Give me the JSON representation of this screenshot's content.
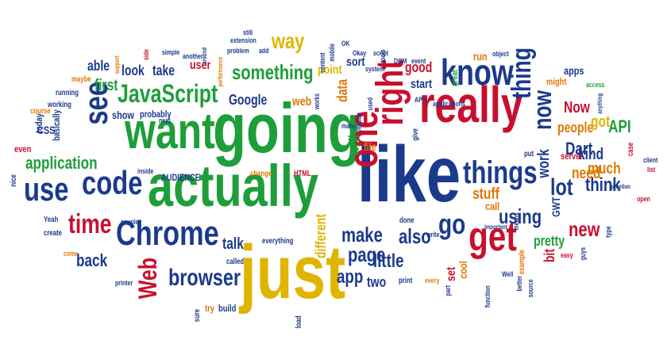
{
  "colors": {
    "red": "#c8102e",
    "green": "#1e9e3a",
    "blue": "#1b3a8c",
    "yellow": "#e0b400",
    "orange": "#e07800"
  },
  "words": [
    {
      "text": "like",
      "color": "blue",
      "weight": 10
    },
    {
      "text": "going",
      "color": "green",
      "weight": 10
    },
    {
      "text": "just",
      "color": "yellow",
      "weight": 9
    },
    {
      "text": "actually",
      "color": "green",
      "weight": 9
    },
    {
      "text": "want",
      "color": "green",
      "weight": 8
    },
    {
      "text": "really",
      "color": "red",
      "weight": 8
    },
    {
      "text": "one",
      "color": "red",
      "weight": 7
    },
    {
      "text": "right",
      "color": "red",
      "weight": 7
    },
    {
      "text": "know",
      "color": "blue",
      "weight": 7
    },
    {
      "text": "get",
      "color": "red",
      "weight": 7
    },
    {
      "text": "Chrome",
      "color": "blue",
      "weight": 6
    },
    {
      "text": "code",
      "color": "blue",
      "weight": 6
    },
    {
      "text": "things",
      "color": "blue",
      "weight": 6
    },
    {
      "text": "see",
      "color": "blue",
      "weight": 6
    },
    {
      "text": "use",
      "color": "blue",
      "weight": 6
    },
    {
      "text": "time",
      "color": "red",
      "weight": 6
    },
    {
      "text": "JavaScript",
      "color": "green",
      "weight": 5
    },
    {
      "text": "go",
      "color": "blue",
      "weight": 5
    },
    {
      "text": "thing",
      "color": "blue",
      "weight": 5
    },
    {
      "text": "now",
      "color": "blue",
      "weight": 5
    },
    {
      "text": "Web",
      "color": "red",
      "weight": 5
    },
    {
      "text": "browser",
      "color": "blue",
      "weight": 5
    },
    {
      "text": "lot",
      "color": "blue",
      "weight": 5
    },
    {
      "text": "way",
      "color": "yellow",
      "weight": 4
    },
    {
      "text": "something",
      "color": "green",
      "weight": 4
    },
    {
      "text": "make",
      "color": "blue",
      "weight": 4
    },
    {
      "text": "also",
      "color": "blue",
      "weight": 4
    },
    {
      "text": "page",
      "color": "blue",
      "weight": 4
    },
    {
      "text": "little",
      "color": "blue",
      "weight": 4
    },
    {
      "text": "using",
      "color": "blue",
      "weight": 4
    },
    {
      "text": "think",
      "color": "blue",
      "weight": 4
    },
    {
      "text": "app",
      "color": "blue",
      "weight": 4
    },
    {
      "text": "new",
      "color": "red",
      "weight": 4
    },
    {
      "text": "application",
      "color": "green",
      "weight": 4
    },
    {
      "text": "back",
      "color": "blue",
      "weight": 4
    },
    {
      "text": "Dart",
      "color": "blue",
      "weight": 3
    },
    {
      "text": "work",
      "color": "blue",
      "weight": 3
    },
    {
      "text": "kind",
      "color": "blue",
      "weight": 3
    },
    {
      "text": "need",
      "color": "orange",
      "weight": 3
    },
    {
      "text": "much",
      "color": "orange",
      "weight": 3
    },
    {
      "text": "Now",
      "color": "red",
      "weight": 3
    },
    {
      "text": "API",
      "color": "green",
      "weight": 3
    },
    {
      "text": "people",
      "color": "orange",
      "weight": 3
    },
    {
      "text": "got",
      "color": "yellow",
      "weight": 3
    },
    {
      "text": "stuff",
      "color": "orange",
      "weight": 3
    },
    {
      "text": "talk",
      "color": "blue",
      "weight": 3
    },
    {
      "text": "first",
      "color": "green",
      "weight": 3
    },
    {
      "text": "look",
      "color": "blue",
      "weight": 3
    },
    {
      "text": "take",
      "color": "blue",
      "weight": 3
    },
    {
      "text": "able",
      "color": "blue",
      "weight": 3
    },
    {
      "text": "Google",
      "color": "blue",
      "weight": 3
    },
    {
      "text": "data",
      "color": "orange",
      "weight": 3
    },
    {
      "text": "good",
      "color": "red",
      "weight": 3
    },
    {
      "text": "start",
      "color": "blue",
      "weight": 3
    },
    {
      "text": "well",
      "color": "green",
      "weight": 3
    },
    {
      "text": "pretty",
      "color": "green",
      "weight": 3
    },
    {
      "text": "bit",
      "color": "red",
      "weight": 3
    },
    {
      "text": "two",
      "color": "blue",
      "weight": 3
    },
    {
      "text": "different",
      "color": "yellow",
      "weight": 3
    },
    {
      "text": "web",
      "color": "orange",
      "weight": 3
    },
    {
      "text": "show",
      "color": "blue",
      "weight": 2
    },
    {
      "text": "user",
      "color": "red",
      "weight": 2
    },
    {
      "text": "point",
      "color": "yellow",
      "weight": 2
    },
    {
      "text": "sort",
      "color": "blue",
      "weight": 2
    },
    {
      "text": "run",
      "color": "orange",
      "weight": 2
    },
    {
      "text": "apps",
      "color": "blue",
      "weight": 2
    },
    {
      "text": "file",
      "color": "orange",
      "weight": 2
    },
    {
      "text": "set",
      "color": "red",
      "weight": 2
    },
    {
      "text": "cool",
      "color": "orange",
      "weight": 2
    },
    {
      "text": "call",
      "color": "orange",
      "weight": 2
    },
    {
      "text": "GWT",
      "color": "blue",
      "weight": 2
    },
    {
      "text": "server",
      "color": "red",
      "weight": 2
    },
    {
      "text": "CSS",
      "color": "blue",
      "weight": 2
    },
    {
      "text": "basically",
      "color": "blue",
      "weight": 2
    },
    {
      "text": "today",
      "color": "blue",
      "weight": 2
    },
    {
      "text": "even",
      "color": "red",
      "weight": 2
    },
    {
      "text": "probably",
      "color": "blue",
      "weight": 2
    },
    {
      "text": "AUDIENCE",
      "color": "blue",
      "weight": 2
    },
    {
      "text": "build",
      "color": "blue",
      "weight": 2
    },
    {
      "text": "try",
      "color": "orange",
      "weight": 2
    },
    {
      "text": "sure",
      "color": "blue",
      "weight": 1
    },
    {
      "text": "might",
      "color": "orange",
      "weight": 1
    },
    {
      "text": "example",
      "color": "orange",
      "weight": 1
    },
    {
      "text": "case",
      "color": "red",
      "weight": 1
    },
    {
      "text": "put",
      "color": "blue",
      "weight": 1
    },
    {
      "text": "give",
      "color": "blue",
      "weight": 1
    },
    {
      "text": "running",
      "color": "blue",
      "weight": 1
    },
    {
      "text": "working",
      "color": "blue",
      "weight": 1
    },
    {
      "text": "course",
      "color": "orange",
      "weight": 1
    },
    {
      "text": "maybe",
      "color": "orange",
      "weight": 1
    },
    {
      "text": "nice",
      "color": "blue",
      "weight": 1
    },
    {
      "text": "Yeah",
      "color": "blue",
      "weight": 1
    },
    {
      "text": "create",
      "color": "blue",
      "weight": 1
    },
    {
      "text": "come",
      "color": "orange",
      "weight": 1
    },
    {
      "text": "couple",
      "color": "blue",
      "weight": 1
    },
    {
      "text": "inside",
      "color": "blue",
      "weight": 1
    },
    {
      "text": "change",
      "color": "orange",
      "weight": 1
    },
    {
      "text": "HTML",
      "color": "red",
      "weight": 1
    },
    {
      "text": "called",
      "color": "blue",
      "weight": 1
    },
    {
      "text": "everything",
      "color": "blue",
      "weight": 1
    },
    {
      "text": "printer",
      "color": "blue",
      "weight": 1
    },
    {
      "text": "load",
      "color": "blue",
      "weight": 1
    },
    {
      "text": "done",
      "color": "blue",
      "weight": 1
    },
    {
      "text": "write",
      "color": "blue",
      "weight": 1
    },
    {
      "text": "print",
      "color": "blue",
      "weight": 1
    },
    {
      "text": "every",
      "color": "orange",
      "weight": 1
    },
    {
      "text": "part",
      "color": "blue",
      "weight": 1
    },
    {
      "text": "function",
      "color": "blue",
      "weight": 1
    },
    {
      "text": "better",
      "color": "blue",
      "weight": 1
    },
    {
      "text": "source",
      "color": "blue",
      "weight": 1
    },
    {
      "text": "Well",
      "color": "blue",
      "weight": 1
    },
    {
      "text": "means",
      "color": "blue",
      "weight": 1
    },
    {
      "text": "important",
      "color": "blue",
      "weight": 1
    },
    {
      "text": "easy",
      "color": "red",
      "weight": 1
    },
    {
      "text": "guys",
      "color": "blue",
      "weight": 1
    },
    {
      "text": "type",
      "color": "blue",
      "weight": 1
    },
    {
      "text": "open",
      "color": "red",
      "weight": 1
    },
    {
      "text": "question",
      "color": "blue",
      "weight": 1
    },
    {
      "text": "list",
      "color": "red",
      "weight": 1
    },
    {
      "text": "client",
      "color": "blue",
      "weight": 1
    },
    {
      "text": "anything",
      "color": "blue",
      "weight": 1
    },
    {
      "text": "access",
      "color": "green",
      "weight": 1
    },
    {
      "text": "object",
      "color": "blue",
      "weight": 1
    },
    {
      "text": "great",
      "color": "green",
      "weight": 1
    },
    {
      "text": "event",
      "color": "blue",
      "weight": 1
    },
    {
      "text": "DOM",
      "color": "blue",
      "weight": 1
    },
    {
      "text": "tools",
      "color": "blue",
      "weight": 1
    },
    {
      "text": "Okay",
      "color": "blue",
      "weight": 1
    },
    {
      "text": "script",
      "color": "blue",
      "weight": 1
    },
    {
      "text": "system",
      "color": "blue",
      "weight": 1
    },
    {
      "text": "mobile",
      "color": "blue",
      "weight": 1
    },
    {
      "text": "OK",
      "color": "blue",
      "weight": 1
    },
    {
      "text": "content",
      "color": "blue",
      "weight": 1
    },
    {
      "text": "extension",
      "color": "blue",
      "weight": 1
    },
    {
      "text": "still",
      "color": "blue",
      "weight": 1
    },
    {
      "text": "add",
      "color": "blue",
      "weight": 1
    },
    {
      "text": "problem",
      "color": "blue",
      "weight": 1
    },
    {
      "text": "performance",
      "color": "orange",
      "weight": 1
    },
    {
      "text": "around",
      "color": "blue",
      "weight": 1
    },
    {
      "text": "another",
      "color": "blue",
      "weight": 1
    },
    {
      "text": "simple",
      "color": "blue",
      "weight": 1
    },
    {
      "text": "side",
      "color": "red",
      "weight": 1
    },
    {
      "text": "support",
      "color": "orange",
      "weight": 1
    },
    {
      "text": "next",
      "color": "blue",
      "weight": 1
    },
    {
      "text": "works",
      "color": "blue",
      "weight": 1
    },
    {
      "text": "version",
      "color": "blue",
      "weight": 1
    },
    {
      "text": "used",
      "color": "blue",
      "weight": 1
    },
    {
      "text": "APIs",
      "color": "blue",
      "weight": 1
    },
    {
      "text": "applications",
      "color": "blue",
      "weight": 1
    },
    {
      "text": "many",
      "color": "blue",
      "weight": 1
    }
  ]
}
